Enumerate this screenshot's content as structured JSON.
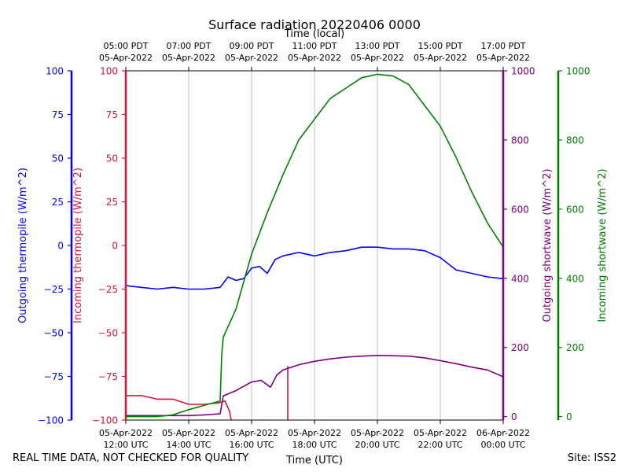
{
  "chart_data": {
    "type": "line",
    "title": "Surface radiation 20220406 0000",
    "top_xlabel": "Time (local)",
    "xlabel": "Time (UTC)",
    "x_range_hours_utc": [
      12,
      24
    ],
    "x_ticks_utc": [
      {
        "h": 12,
        "line1": "05-Apr-2022",
        "line2": "12:00 UTC"
      },
      {
        "h": 14,
        "line1": "05-Apr-2022",
        "line2": "14:00 UTC"
      },
      {
        "h": 16,
        "line1": "05-Apr-2022",
        "line2": "16:00 UTC"
      },
      {
        "h": 18,
        "line1": "05-Apr-2022",
        "line2": "18:00 UTC"
      },
      {
        "h": 20,
        "line1": "05-Apr-2022",
        "line2": "20:00 UTC"
      },
      {
        "h": 22,
        "line1": "05-Apr-2022",
        "line2": "22:00 UTC"
      },
      {
        "h": 24,
        "line1": "06-Apr-2022",
        "line2": "00:00 UTC"
      }
    ],
    "x_ticks_local": [
      {
        "h": 12,
        "line1": "05:00 PDT",
        "line2": "05-Apr-2022"
      },
      {
        "h": 14,
        "line1": "07:00 PDT",
        "line2": "05-Apr-2022"
      },
      {
        "h": 16,
        "line1": "09:00 PDT",
        "line2": "05-Apr-2022"
      },
      {
        "h": 18,
        "line1": "11:00 PDT",
        "line2": "05-Apr-2022"
      },
      {
        "h": 20,
        "line1": "13:00 PDT",
        "line2": "05-Apr-2022"
      },
      {
        "h": 22,
        "line1": "15:00 PDT",
        "line2": "05-Apr-2022"
      },
      {
        "h": 24,
        "line1": "17:00 PDT",
        "line2": "05-Apr-2022"
      }
    ],
    "axes": {
      "outgoing_thermopile": {
        "label": "Outgoing thermopile (W/m^2)",
        "color": "#0000ff",
        "range": [
          -100,
          100
        ],
        "ticks": [
          "100",
          "75",
          "50",
          "25",
          "0",
          "−25",
          "−50",
          "−75",
          "−100"
        ]
      },
      "incoming_thermopile": {
        "label": "Incoming thermopile (W/m^2)",
        "color": "#dc143c",
        "range": [
          -100,
          100
        ],
        "ticks": [
          "100",
          "75",
          "50",
          "25",
          "0",
          "−25",
          "−50",
          "−75",
          "−100"
        ]
      },
      "outgoing_shortwave": {
        "label": "Outgoing shortwave (W/m^2)",
        "color": "#800080",
        "range": [
          -10,
          1000
        ],
        "ticks": [
          "1000",
          "800",
          "600",
          "400",
          "200",
          "0"
        ]
      },
      "incoming_shortwave": {
        "label": "Incoming shortwave (W/m^2)",
        "color": "#008000",
        "range": [
          -10,
          1000
        ],
        "ticks": [
          "1000",
          "800",
          "600",
          "400",
          "200",
          "0"
        ]
      }
    },
    "series": [
      {
        "name": "Outgoing thermopile",
        "axis": "outgoing_thermopile",
        "color": "#0000ff",
        "x": [
          12,
          12.5,
          13,
          13.5,
          14,
          14.5,
          15,
          15.25,
          15.5,
          15.75,
          16,
          16.25,
          16.5,
          16.75,
          17,
          17.5,
          18,
          18.5,
          19,
          19.5,
          20,
          20.5,
          21,
          21.5,
          22,
          22.5,
          23,
          23.5,
          24
        ],
        "y": [
          -23,
          -24,
          -25,
          -24,
          -25,
          -25,
          -24,
          -18,
          -20,
          -19,
          -13,
          -12,
          -16,
          -8,
          -6,
          -4,
          -6,
          -4,
          -3,
          -1,
          -1,
          -2,
          -2,
          -3,
          -7,
          -14,
          -16,
          -18,
          -19
        ]
      },
      {
        "name": "Incoming thermopile",
        "axis": "incoming_thermopile",
        "color": "#dc143c",
        "x": [
          12,
          12.5,
          13,
          13.5,
          14,
          14.5,
          15,
          15.15,
          15.3,
          15.35
        ],
        "y": [
          -86,
          -86,
          -88,
          -88,
          -91,
          -91,
          -90,
          -89,
          -95,
          -100
        ]
      },
      {
        "name": "Incoming thermopile spike",
        "axis": "incoming_thermopile",
        "color": "#dc143c",
        "x": [
          17.15,
          17.15
        ],
        "y": [
          -100,
          -69
        ]
      },
      {
        "name": "Outgoing shortwave",
        "axis": "outgoing_shortwave",
        "color": "#800080",
        "x": [
          12,
          13,
          14,
          14.5,
          15,
          15.1,
          15.5,
          16,
          16.3,
          16.6,
          16.8,
          17,
          17.5,
          18,
          18.5,
          19,
          19.5,
          20,
          20.5,
          21,
          21.5,
          22,
          22.5,
          23,
          23.5,
          24
        ],
        "y": [
          3,
          3,
          3,
          5,
          8,
          60,
          75,
          100,
          105,
          85,
          120,
          135,
          150,
          160,
          167,
          172,
          175,
          177,
          176,
          175,
          170,
          162,
          153,
          143,
          135,
          115
        ]
      },
      {
        "name": "Incoming shortwave",
        "axis": "incoming_shortwave",
        "color": "#008000",
        "x": [
          12,
          13,
          13.5,
          14,
          14.5,
          15,
          15.05,
          15.1,
          15.2,
          15.5,
          16,
          16.5,
          17,
          17.5,
          18,
          18.5,
          19,
          19.5,
          20,
          20.5,
          21,
          21.5,
          22,
          22.5,
          23,
          23.5,
          24
        ],
        "y": [
          0,
          0,
          5,
          20,
          33,
          45,
          180,
          230,
          250,
          310,
          470,
          590,
          700,
          800,
          860,
          920,
          950,
          980,
          990,
          985,
          960,
          900,
          840,
          750,
          650,
          560,
          490
        ]
      }
    ]
  },
  "footer": {
    "left": "REAL TIME DATA, NOT CHECKED FOR QUALITY",
    "right": "Site: ISS2"
  }
}
